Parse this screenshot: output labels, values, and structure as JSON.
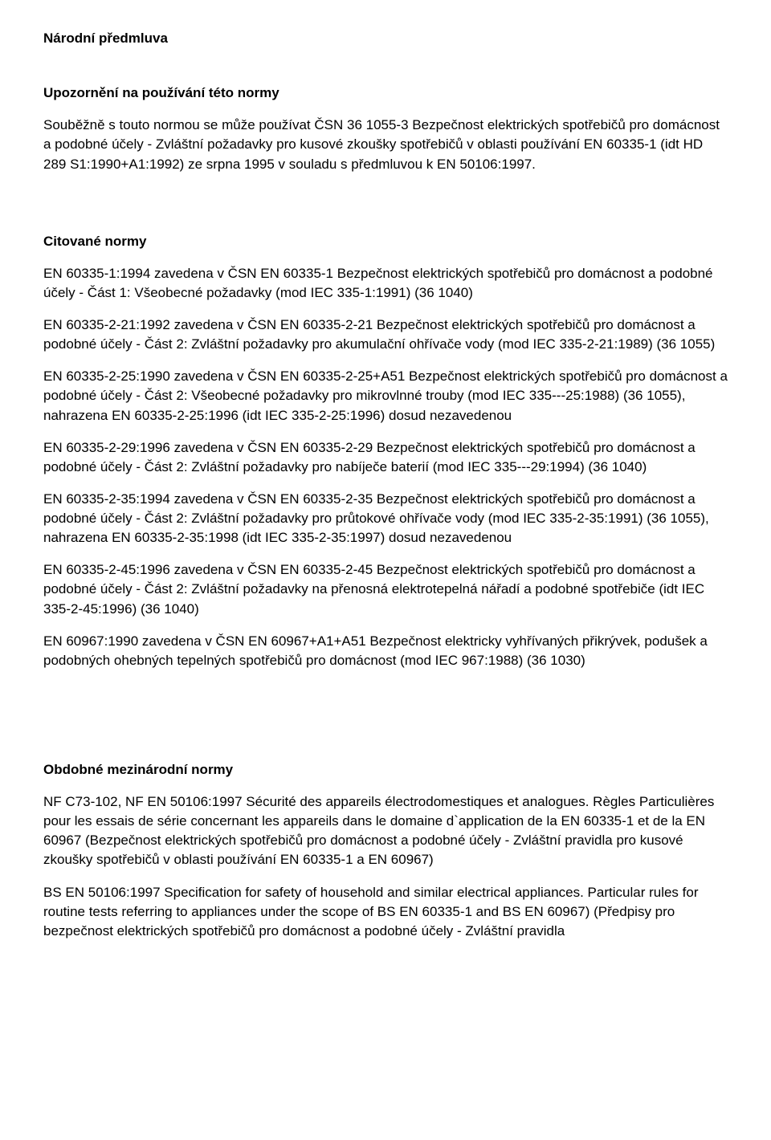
{
  "title": "Národní předmluva",
  "section_upozorneni": {
    "heading": "Upozornění na používání této normy",
    "para": "Souběžně s touto normou se může používat ČSN 36 1055-3 Bezpečnost elektrických spotřebičů pro domácnost a podobné účely - Zvláštní požadavky pro kusové zkoušky spotřebičů v oblasti používání EN 60335-1 (idt HD 289 S1:1990+A1:1992) ze srpna 1995 v souladu s předmluvou k EN 50106:1997."
  },
  "section_citovane": {
    "heading": "Citované normy",
    "items": [
      "EN 60335-1:1994 zavedena v ČSN EN 60335-1 Bezpečnost elektrických spotřebičů pro domácnost a podobné účely - Část 1: Všeobecné požadavky (mod IEC 335-1:1991) (36 1040)",
      "EN 60335-2-21:1992 zavedena v ČSN EN 60335-2-21 Bezpečnost elektrických spotřebičů pro domácnost a podobné účely - Část 2: Zvláštní požadavky pro akumulační ohřívače vody (mod IEC 335-2-21:1989) (36 1055)",
      "EN 60335-2-25:1990 zavedena v ČSN EN 60335-2-25+A51 Bezpečnost elektrických spotřebičů pro domácnost a podobné účely - Část 2: Všeobecné požadavky pro mikrovlnné trouby (mod IEC 335---25:1988) (36 1055), nahrazena EN 60335-2-25:1996 (idt IEC 335-2-25:1996) dosud nezavedenou",
      "EN 60335-2-29:1996 zavedena v ČSN EN 60335-2-29 Bezpečnost elektrických spotřebičů pro domácnost a podobné účely - Část 2: Zvláštní požadavky pro nabíječe baterií (mod IEC 335---29:1994) (36 1040)",
      "EN 60335-2-35:1994 zavedena v ČSN EN 60335-2-35 Bezpečnost elektrických spotřebičů pro domácnost a podobné účely - Část 2: Zvláštní požadavky pro průtokové ohřívače vody (mod IEC 335-2-35:1991) (36 1055), nahrazena EN 60335-2-35:1998 (idt IEC 335-2-35:1997) dosud nezavedenou",
      "EN 60335-2-45:1996 zavedena v ČSN EN 60335-2-45 Bezpečnost elektrických spotřebičů pro domácnost a podobné účely - Část 2: Zvláštní požadavky na přenosná elektrotepelná nářadí a podobné spotřebiče (idt IEC 335-2-45:1996) (36 1040)",
      "EN 60967:1990 zavedena v ČSN EN 60967+A1+A51 Bezpečnost elektricky vyhřívaných přikrývek, podušek a podobných ohebných tepelných spotřebičů pro domácnost (mod IEC 967:1988) (36 1030)"
    ]
  },
  "section_obdobne": {
    "heading": "Obdobné mezinárodní normy",
    "items": [
      "NF C73-102, NF EN 50106:1997 Sécurité des appareils électrodomestiques et analogues. Règles Particulières pour les essais de série concernant les appareils dans le domaine d`application de la EN 60335-1 et de la EN 60967 (Bezpečnost elektrických spotřebičů pro domácnost a podobné účely - Zvláštní pravidla pro kusové zkoušky spotřebičů v oblasti používání EN 60335-1 a EN 60967)",
      "BS EN 50106:1997 Specification for safety of household and similar electrical appliances. Particular rules for routine tests referring to appliances under the scope of BS EN 60335-1 and BS EN 60967) (Předpisy pro bezpečnost elektrických spotřebičů pro domácnost a podobné účely - Zvláštní pravidla"
    ]
  }
}
